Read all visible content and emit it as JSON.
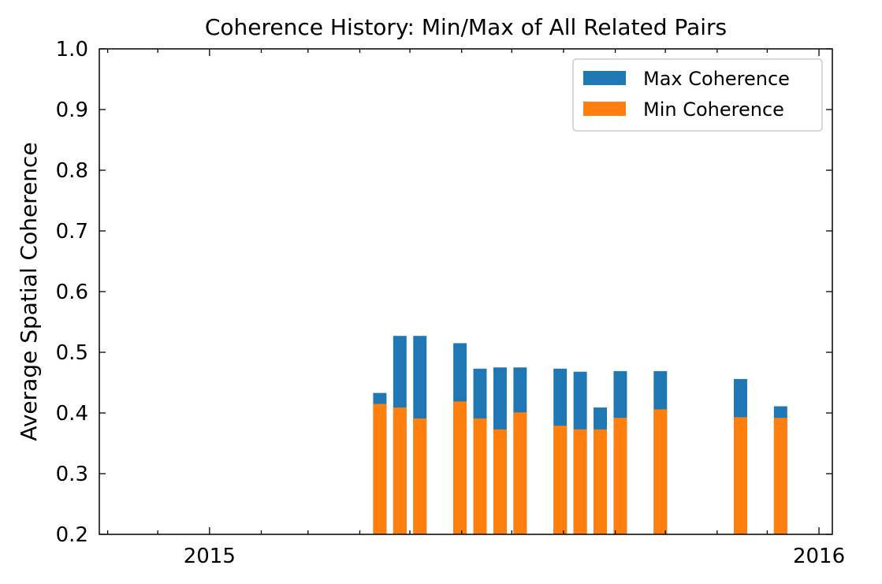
{
  "chart_data": {
    "type": "bar",
    "title": "Coherence History: Min/Max of All Related Pairs",
    "xlabel": "",
    "ylabel": "Average Spatial Coherence",
    "ylim": [
      0.2,
      1.0
    ],
    "xlim": [
      "2014-10-27",
      "2016-01-09"
    ],
    "yticks": [
      "0.2",
      "0.3",
      "0.4",
      "0.5",
      "0.6",
      "0.7",
      "0.8",
      "0.9",
      "1.0"
    ],
    "xticks": [
      {
        "date": "2015-01-01",
        "label": "2015"
      },
      {
        "date": "2016-01-01",
        "label": "2016"
      }
    ],
    "legend": {
      "placement": "top-right",
      "entries": [
        "Max Coherence",
        "Min Coherence"
      ]
    },
    "grid": false,
    "bars": [
      {
        "date": "2015-04-13",
        "max": 0.433,
        "min": 0.415
      },
      {
        "date": "2015-04-25",
        "max": 0.527,
        "min": 0.409
      },
      {
        "date": "2015-05-07",
        "max": 0.527,
        "min": 0.391
      },
      {
        "date": "2015-05-31",
        "max": 0.515,
        "min": 0.419
      },
      {
        "date": "2015-06-12",
        "max": 0.473,
        "min": 0.391
      },
      {
        "date": "2015-06-24",
        "max": 0.475,
        "min": 0.373
      },
      {
        "date": "2015-07-06",
        "max": 0.475,
        "min": 0.401
      },
      {
        "date": "2015-07-30",
        "max": 0.473,
        "min": 0.379
      },
      {
        "date": "2015-08-11",
        "max": 0.468,
        "min": 0.373
      },
      {
        "date": "2015-08-23",
        "max": 0.409,
        "min": 0.373
      },
      {
        "date": "2015-09-04",
        "max": 0.469,
        "min": 0.392
      },
      {
        "date": "2015-09-28",
        "max": 0.469,
        "min": 0.406
      },
      {
        "date": "2015-11-15",
        "max": 0.456,
        "min": 0.393
      },
      {
        "date": "2015-12-09",
        "max": 0.411,
        "min": 0.392
      }
    ],
    "colors": {
      "max": "#1f77b4",
      "min": "#ff7f0e"
    }
  }
}
